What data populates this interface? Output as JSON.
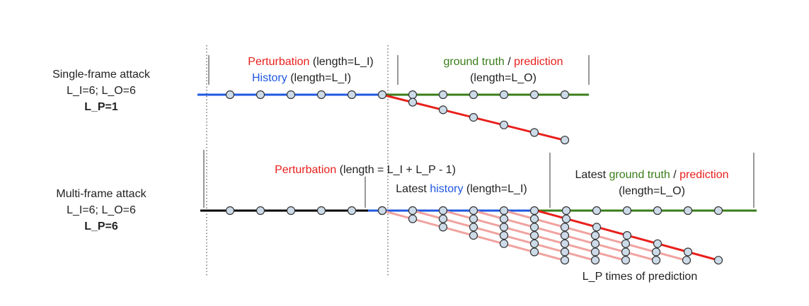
{
  "colors": {
    "perturbation": "#e8201c",
    "history": "#1f57e0",
    "ground_truth": "#3a7d1a",
    "prediction": "#e8201c",
    "clean_history": "#000000",
    "shadow_prediction": "#f0a3a0",
    "point_fill": "#cddbe9",
    "point_stroke": "#333333"
  },
  "single": {
    "title": "Single-frame attack",
    "params": "L_I=6; L_O=6",
    "lp": "L_P=1",
    "perturb_word": "Perturbation",
    "perturb_len": " (length=L_I)",
    "history_word": "History",
    "history_len": " (length=L_I)",
    "gt_word": "ground truth",
    "slash": " / ",
    "pred_word": "prediction",
    "output_len": "(length=L_O)"
  },
  "multi": {
    "title": "Multi-frame attack",
    "params": "L_I=6; L_O=6",
    "lp": "L_P=6",
    "perturb_word": "Perturbation",
    "perturb_len": " (length = L_I + L_P - 1)",
    "latest": "Latest ",
    "history_word": "history",
    "history_len": " (length=L_I)",
    "latest_gt": "Latest ",
    "gt_word": "ground truth",
    "slash": " / ",
    "pred_word": "prediction",
    "output_len": "(length=L_O)",
    "times_label": "L_P times of prediction"
  }
}
